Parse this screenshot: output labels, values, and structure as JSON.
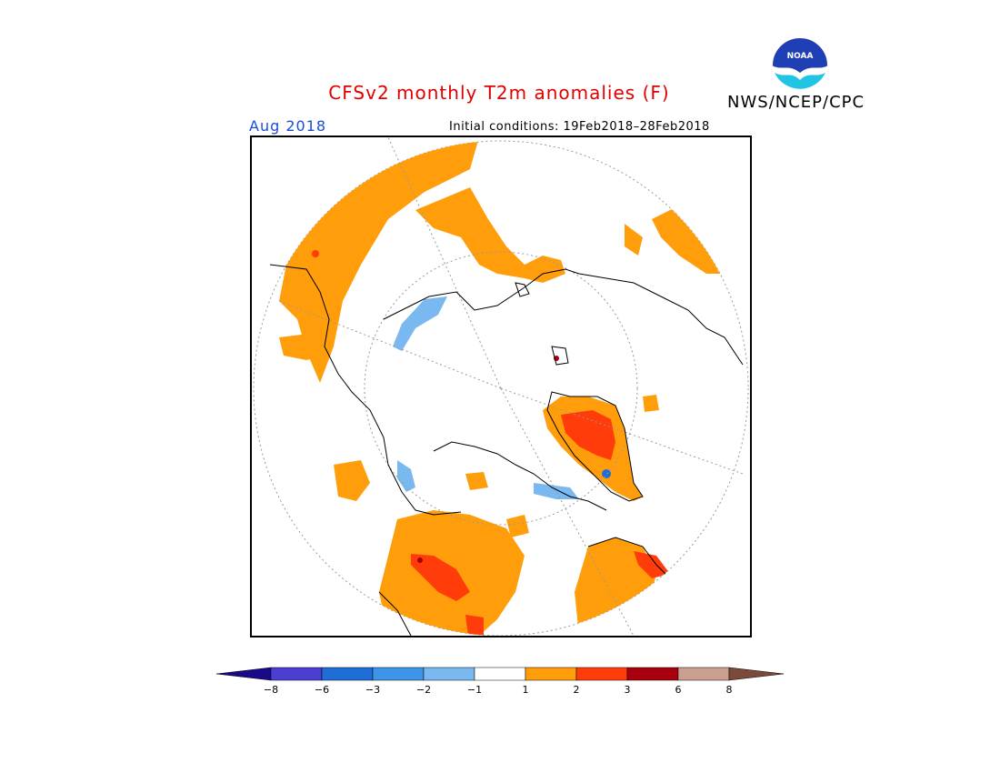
{
  "header": {
    "title": "CFSv2 monthly T2m anomalies (F)",
    "org": "NWS/NCEP/CPC",
    "logo_text": "NOAA",
    "month": "Aug 2018",
    "initial_conditions": "Initial conditions: 19Feb2018–28Feb2018"
  },
  "legend": {
    "ticks": [
      "−8",
      "−6",
      "−3",
      "−2",
      "−1",
      "1",
      "2",
      "3",
      "6",
      "8"
    ],
    "colors": [
      "#1a0a8a",
      "#4a3fd0",
      "#1f6ed8",
      "#3c95e8",
      "#79b9ef",
      "#ffffff",
      "#ff9e0a",
      "#ff3c0a",
      "#a8000f",
      "#c9a090",
      "#7a4a3a"
    ]
  },
  "map": {
    "projection": "north-polar-stereographic",
    "colors": {
      "warm1": "#ff9e0a",
      "warm2": "#ff3c0a",
      "warm3": "#a8000f",
      "cool1": "#79b9ef",
      "cool2": "#3c95e8",
      "coast": "#000000",
      "grid": "#9a9a9a"
    }
  }
}
